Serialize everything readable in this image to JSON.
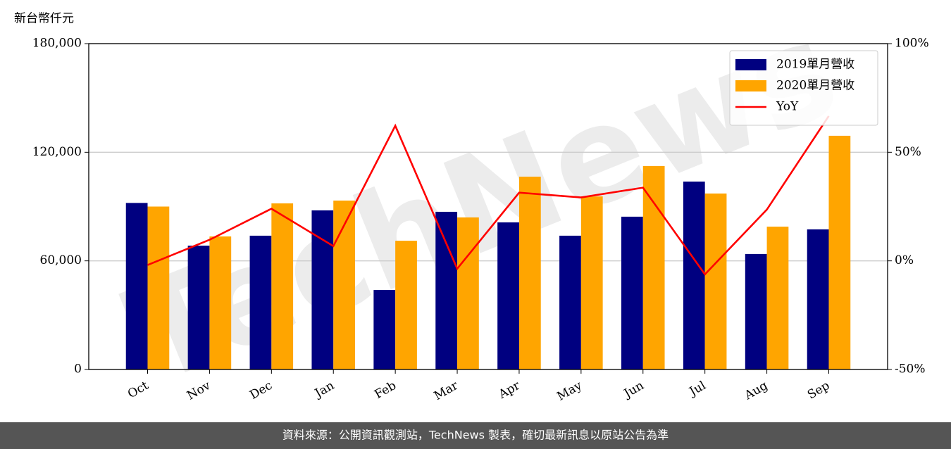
{
  "chart_data": {
    "type": "bar",
    "y_label": "新台幣仟元",
    "categories": [
      "Oct",
      "Nov",
      "Dec",
      "Jan",
      "Feb",
      "Mar",
      "Apr",
      "May",
      "Jun",
      "Jul",
      "Aug",
      "Sep"
    ],
    "series": [
      {
        "name": "2019單月營收",
        "color": "#000080",
        "type": "bar",
        "values": [
          92000,
          68400,
          73900,
          87900,
          43900,
          87100,
          81250,
          73900,
          84400,
          103800,
          63800,
          77400
        ]
      },
      {
        "name": "2020單月營收",
        "color": "#ffa500",
        "type": "bar",
        "values": [
          90000,
          73500,
          91750,
          93300,
          71100,
          84000,
          106500,
          95600,
          112400,
          97200,
          78900,
          129100
        ]
      },
      {
        "name": "YoY",
        "color": "#ff0000",
        "type": "line",
        "axis": "y2",
        "values": [
          -1.9,
          9.7,
          24.0,
          6.8,
          62.2,
          -3.6,
          31.4,
          29.2,
          33.7,
          -6.2,
          23.6,
          66.7
        ]
      }
    ],
    "ylim": [
      0,
      180000
    ],
    "yticks": [
      0,
      {
        "value": 60000,
        "label": "60,000"
      },
      {
        "value": 120000,
        "label": "120,000"
      },
      {
        "value": 180000,
        "label": "180,000"
      }
    ],
    "y2lim": [
      -50,
      100
    ],
    "y2ticks": [
      {
        "value": -50,
        "label": "-50%"
      },
      {
        "value": 0,
        "label": "0%"
      },
      {
        "value": 50,
        "label": "50%"
      },
      {
        "value": 100,
        "label": "100%"
      }
    ],
    "grid": true,
    "legend": "upper right",
    "watermark": "TechNews",
    "footer": "資料來源：公開資訊觀測站，TechNews 製表，確切最新訊息以原站公告為準"
  }
}
